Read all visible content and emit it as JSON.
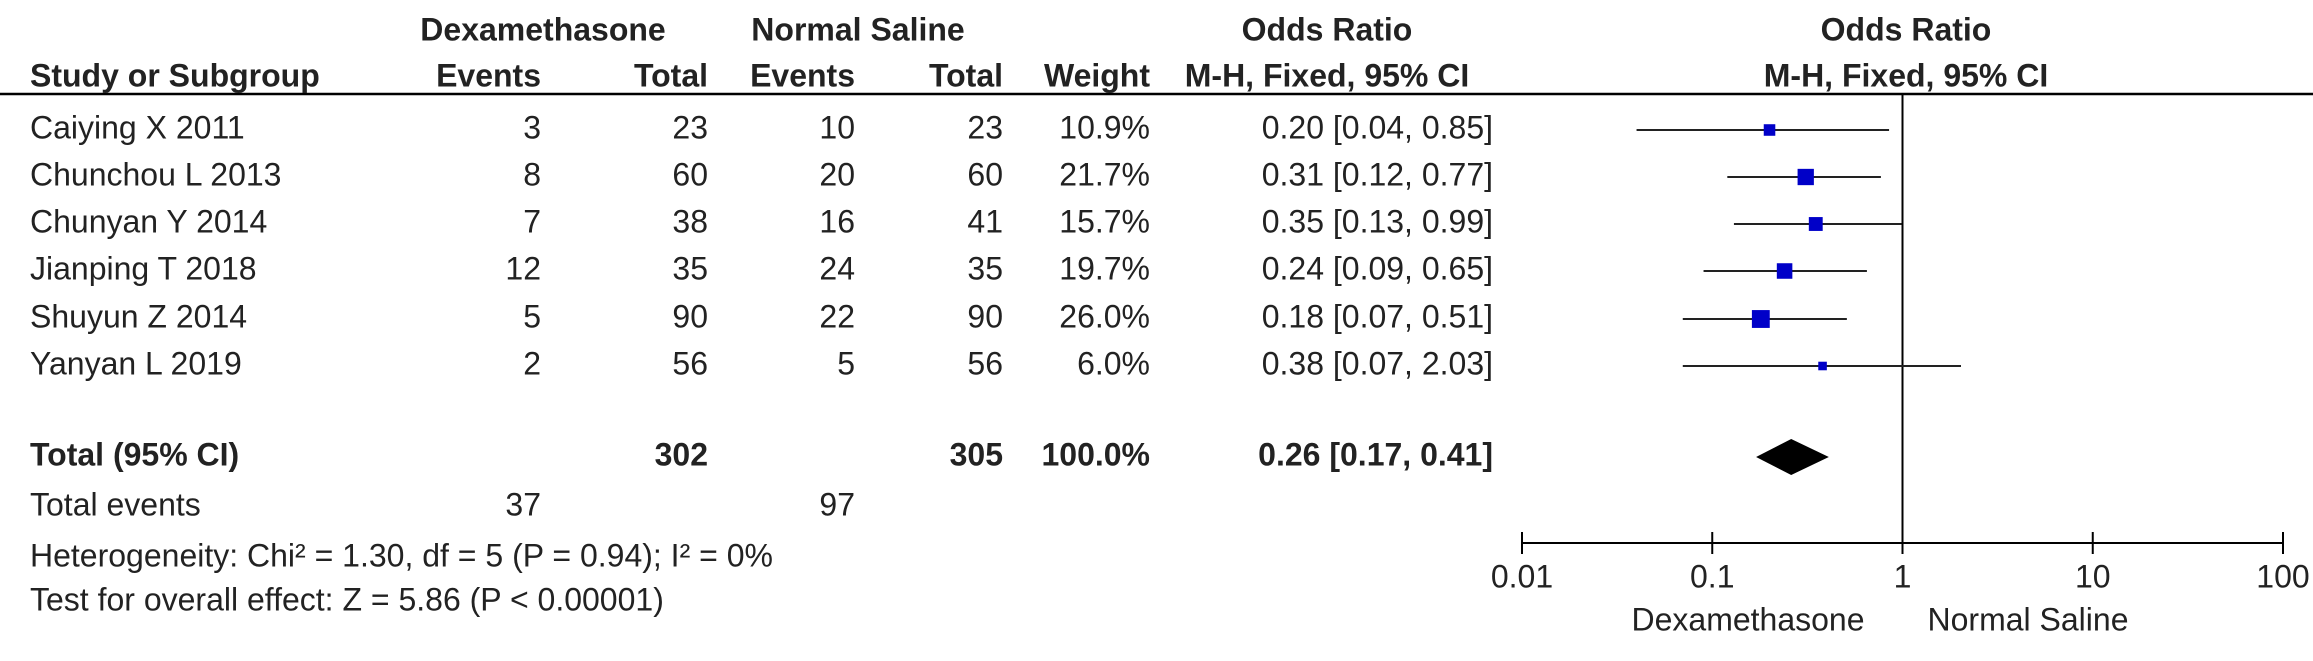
{
  "chart_data": {
    "type": "forest",
    "group_headers": {
      "treatment": "Dexamethasone",
      "control": "Normal Saline",
      "or_table": "Odds Ratio",
      "or_plot": "Odds Ratio"
    },
    "column_headers": {
      "study": "Study or Subgroup",
      "t_events": "Events",
      "t_total": "Total",
      "c_events": "Events",
      "c_total": "Total",
      "weight": "Weight",
      "or_table": "M-H, Fixed, 95% CI",
      "or_plot": "M-H, Fixed, 95% CI"
    },
    "studies": [
      {
        "name": "Caiying X 2011",
        "t_events": 3,
        "t_total": 23,
        "c_events": 10,
        "c_total": 23,
        "weight": 10.9,
        "weight_label": "10.9%",
        "or": 0.2,
        "ci": [
          0.04,
          0.85
        ],
        "or_label": "0.20 [0.04, 0.85]"
      },
      {
        "name": "Chunchou L 2013",
        "t_events": 8,
        "t_total": 60,
        "c_events": 20,
        "c_total": 60,
        "weight": 21.7,
        "weight_label": "21.7%",
        "or": 0.31,
        "ci": [
          0.12,
          0.77
        ],
        "or_label": "0.31 [0.12, 0.77]"
      },
      {
        "name": "Chunyan Y 2014",
        "t_events": 7,
        "t_total": 38,
        "c_events": 16,
        "c_total": 41,
        "weight": 15.7,
        "weight_label": "15.7%",
        "or": 0.35,
        "ci": [
          0.13,
          0.99
        ],
        "or_label": "0.35 [0.13, 0.99]"
      },
      {
        "name": "Jianping T 2018",
        "t_events": 12,
        "t_total": 35,
        "c_events": 24,
        "c_total": 35,
        "weight": 19.7,
        "weight_label": "19.7%",
        "or": 0.24,
        "ci": [
          0.09,
          0.65
        ],
        "or_label": "0.24 [0.09, 0.65]"
      },
      {
        "name": "Shuyun Z 2014",
        "t_events": 5,
        "t_total": 90,
        "c_events": 22,
        "c_total": 90,
        "weight": 26.0,
        "weight_label": "26.0%",
        "or": 0.18,
        "ci": [
          0.07,
          0.51
        ],
        "or_label": "0.18 [0.07, 0.51]"
      },
      {
        "name": "Yanyan L 2019",
        "t_events": 2,
        "t_total": 56,
        "c_events": 5,
        "c_total": 56,
        "weight": 6.0,
        "weight_label": "6.0%",
        "or": 0.38,
        "ci": [
          0.07,
          2.03
        ],
        "or_label": "0.38 [0.07, 2.03]"
      }
    ],
    "total": {
      "name": "Total (95% CI)",
      "t_total": 302,
      "c_total": 305,
      "weight_label": "100.0%",
      "or": 0.26,
      "ci": [
        0.17,
        0.41
      ],
      "or_label": "0.26 [0.17, 0.41]"
    },
    "total_events": {
      "name": "Total events",
      "t_events": 37,
      "c_events": 97
    },
    "heterogeneity": "Heterogeneity: Chi² = 1.30, df = 5 (P = 0.94); I² = 0%",
    "overall_effect": "Test for overall effect: Z = 5.86 (P < 0.00001)",
    "log_scale": true,
    "xlim": [
      0.01,
      100
    ],
    "xticks": [
      0.01,
      0.1,
      1,
      10,
      100
    ],
    "favours_left": "Dexamethasone",
    "favours_right": "Normal Saline",
    "square_color": "#0000c8",
    "diamond_color": "#000000"
  }
}
